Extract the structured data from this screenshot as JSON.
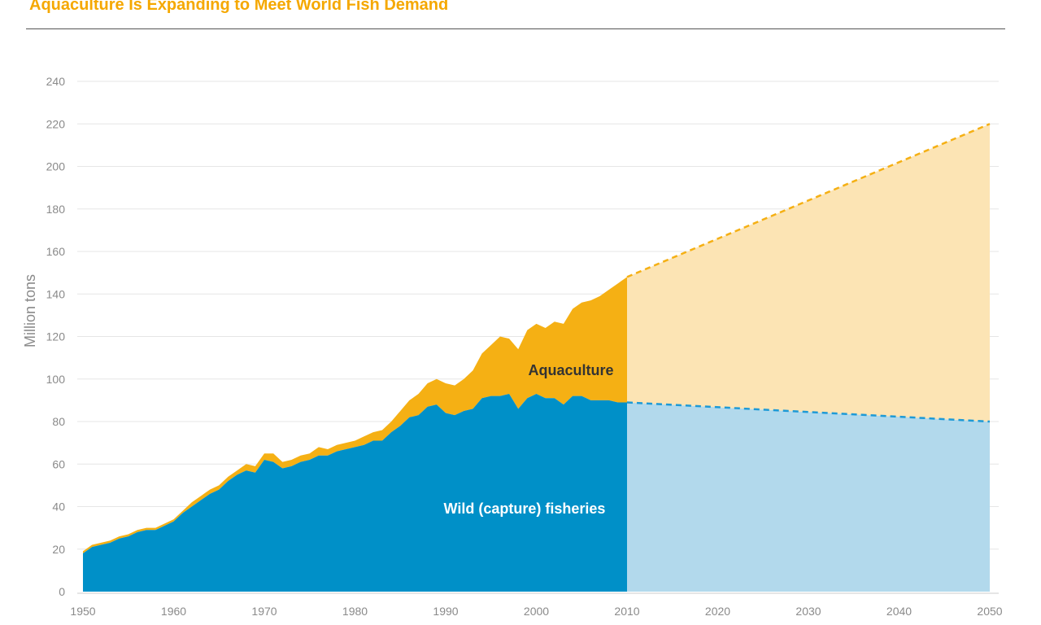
{
  "chart_data": {
    "type": "area",
    "stacked": true,
    "title": "Aquaculture Is Expanding to Meet World Fish Demand",
    "ylabel": "Million tons",
    "xlabel": "",
    "xlim": [
      1950,
      2050
    ],
    "ylim": [
      0,
      240
    ],
    "x_ticks": [
      1950,
      1960,
      1970,
      1980,
      1990,
      2000,
      2010,
      2020,
      2030,
      2040,
      2050
    ],
    "y_ticks": [
      0,
      20,
      40,
      60,
      80,
      100,
      120,
      140,
      160,
      180,
      200,
      220,
      240
    ],
    "grid": true,
    "series": [
      {
        "name": "Wild (capture) fisheries",
        "role": "capture",
        "color": "#0090c8",
        "historical": {
          "x": [
            1950,
            1951,
            1952,
            1953,
            1954,
            1955,
            1956,
            1957,
            1958,
            1959,
            1960,
            1961,
            1962,
            1963,
            1964,
            1965,
            1966,
            1967,
            1968,
            1969,
            1970,
            1971,
            1972,
            1973,
            1974,
            1975,
            1976,
            1977,
            1978,
            1979,
            1980,
            1981,
            1982,
            1983,
            1984,
            1985,
            1986,
            1987,
            1988,
            1989,
            1990,
            1991,
            1992,
            1993,
            1994,
            1995,
            1996,
            1997,
            1998,
            1999,
            2000,
            2001,
            2002,
            2003,
            2004,
            2005,
            2006,
            2007,
            2008,
            2009,
            2010
          ],
          "values": [
            18,
            21,
            22,
            23,
            25,
            26,
            28,
            29,
            29,
            31,
            33,
            37,
            40,
            43,
            46,
            48,
            52,
            55,
            57,
            56,
            62,
            61,
            58,
            59,
            61,
            62,
            64,
            64,
            66,
            67,
            68,
            69,
            71,
            71,
            75,
            78,
            82,
            83,
            87,
            88,
            84,
            83,
            85,
            86,
            91,
            92,
            92,
            93,
            86,
            91,
            93,
            91,
            91,
            88,
            92,
            92,
            90,
            90,
            90,
            89,
            89
          ]
        },
        "projection": {
          "x": [
            2010,
            2050
          ],
          "values": [
            89,
            80
          ]
        }
      },
      {
        "name": "Aquaculture",
        "role": "aquaculture",
        "color": "#f5b014",
        "total_historical": {
          "x": [
            1950,
            1951,
            1952,
            1953,
            1954,
            1955,
            1956,
            1957,
            1958,
            1959,
            1960,
            1961,
            1962,
            1963,
            1964,
            1965,
            1966,
            1967,
            1968,
            1969,
            1970,
            1971,
            1972,
            1973,
            1974,
            1975,
            1976,
            1977,
            1978,
            1979,
            1980,
            1981,
            1982,
            1983,
            1984,
            1985,
            1986,
            1987,
            1988,
            1989,
            1990,
            1991,
            1992,
            1993,
            1994,
            1995,
            1996,
            1997,
            1998,
            1999,
            2000,
            2001,
            2002,
            2003,
            2004,
            2005,
            2006,
            2007,
            2008,
            2009,
            2010
          ],
          "values": [
            19,
            22,
            23,
            24,
            26,
            27,
            29,
            30,
            30,
            32,
            34,
            38,
            42,
            45,
            48,
            50,
            54,
            57,
            60,
            59,
            65,
            65,
            61,
            62,
            64,
            65,
            68,
            67,
            69,
            70,
            71,
            73,
            75,
            76,
            80,
            85,
            90,
            93,
            98,
            100,
            98,
            97,
            100,
            104,
            112,
            116,
            120,
            119,
            114,
            123,
            126,
            124,
            127,
            126,
            133,
            136,
            137,
            139,
            142,
            145,
            148
          ]
        },
        "total_projection": {
          "x": [
            2010,
            2050
          ],
          "values": [
            148,
            220
          ]
        }
      }
    ],
    "labels": {
      "aquaculture": "Aquaculture",
      "capture": "Wild (capture) fisheries"
    }
  }
}
